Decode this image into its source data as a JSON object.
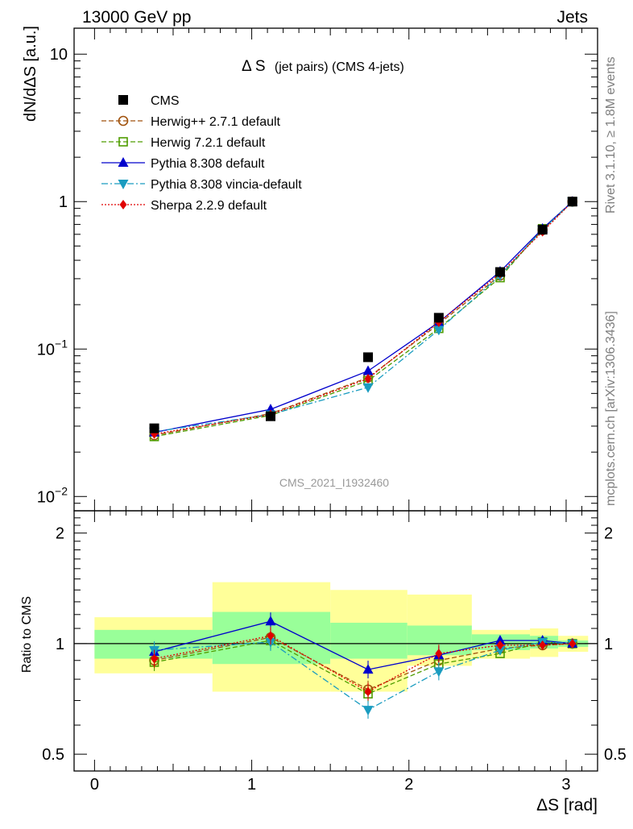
{
  "header": {
    "left": "13000 GeV pp",
    "right": "Jets"
  },
  "side_labels": {
    "top": "Rivet 3.1.10, ≥ 1.8M events",
    "bottom": "mcplots.cern.ch [arXiv:1306.3436]"
  },
  "watermark": "CMS_2021_I1932460",
  "colors": {
    "band_inner": "#99ff99",
    "band_outer": "#ffff99",
    "CMS": "#000000",
    "Herwig++ 2.7.1 default": "#a0520d",
    "Herwig 7.2.1 default": "#4f9d00",
    "Pythia 8.308 default": "#0000cc",
    "Pythia 8.308 vincia-default": "#1a9cc0",
    "Sherpa 2.2.9 default": "#e00000"
  },
  "chart_data": [
    {
      "type": "scatter",
      "panel": "main",
      "title_main": "Δ S",
      "title_sub": "(jet pairs) (CMS 4-jets)",
      "ylabel": "dN/dΔS [a.u.]",
      "yscale": "log",
      "ylim": [
        0.008,
        15
      ],
      "xlim": [
        -0.13,
        3.2
      ],
      "yticks": [
        {
          "v": 0.01,
          "base": "10",
          "exp": "−2"
        },
        {
          "v": 0.1,
          "base": "10",
          "exp": "−1"
        },
        {
          "v": 1,
          "base": "1",
          "exp": ""
        },
        {
          "v": 10,
          "base": "10",
          "exp": ""
        }
      ],
      "x": [
        0.38,
        1.12,
        1.74,
        2.19,
        2.58,
        2.85,
        3.04
      ],
      "series": [
        {
          "name": "CMS",
          "style": "data",
          "marker": "square",
          "values": [
            0.029,
            0.035,
            0.088,
            0.163,
            0.333,
            0.645,
            1.0
          ]
        },
        {
          "name": "Herwig++ 2.7.1 default",
          "style": "dashed",
          "marker": "circle-open",
          "values": [
            0.026,
            0.0365,
            0.064,
            0.148,
            0.315,
            0.64,
            1.0
          ]
        },
        {
          "name": "Herwig 7.2.1 default",
          "style": "dashed",
          "marker": "square-open",
          "values": [
            0.0255,
            0.0355,
            0.061,
            0.138,
            0.305,
            0.655,
            1.0
          ]
        },
        {
          "name": "Pythia 8.308 default",
          "style": "solid",
          "marker": "triangle-up",
          "values": [
            0.0272,
            0.039,
            0.071,
            0.152,
            0.335,
            0.655,
            1.0
          ]
        },
        {
          "name": "Pythia 8.308 vincia-default",
          "style": "dashdot",
          "marker": "triangle-down",
          "values": [
            0.0275,
            0.036,
            0.055,
            0.135,
            0.315,
            0.645,
            1.0
          ]
        },
        {
          "name": "Sherpa 2.2.9 default",
          "style": "dotted",
          "marker": "diamond",
          "values": [
            0.0265,
            0.036,
            0.063,
            0.152,
            0.325,
            0.625,
            1.0
          ]
        }
      ]
    },
    {
      "type": "scatter",
      "panel": "ratio",
      "ylabel": "Ratio to CMS",
      "xlabel": "ΔS [rad]",
      "yscale": "log",
      "ylim": [
        0.45,
        2.3
      ],
      "xlim": [
        -0.13,
        3.2
      ],
      "yticks": [
        {
          "v": 0.5,
          "label": "0.5"
        },
        {
          "v": 1,
          "label": "1"
        },
        {
          "v": 2,
          "label": "2"
        }
      ],
      "xticks": [
        {
          "v": 0,
          "label": "0"
        },
        {
          "v": 1,
          "label": "1"
        },
        {
          "v": 2,
          "label": "2"
        },
        {
          "v": 3,
          "label": "3"
        }
      ],
      "bins": [
        [
          0.0,
          0.75
        ],
        [
          0.75,
          1.5
        ],
        [
          1.5,
          1.99
        ],
        [
          1.99,
          2.4
        ],
        [
          2.4,
          2.77
        ],
        [
          2.77,
          2.95
        ],
        [
          2.95,
          3.14
        ]
      ],
      "band_inner": [
        [
          0.91,
          1.09
        ],
        [
          0.88,
          1.22
        ],
        [
          0.91,
          1.14
        ],
        [
          0.93,
          1.12
        ],
        [
          0.96,
          1.06
        ],
        [
          0.97,
          1.05
        ],
        [
          0.98,
          1.02
        ]
      ],
      "band_outer": [
        [
          0.83,
          1.18
        ],
        [
          0.74,
          1.47
        ],
        [
          0.74,
          1.4
        ],
        [
          0.87,
          1.36
        ],
        [
          0.91,
          1.09
        ],
        [
          0.92,
          1.1
        ],
        [
          0.95,
          1.05
        ]
      ],
      "x": [
        0.38,
        1.12,
        1.74,
        2.19,
        2.58,
        2.85,
        3.04
      ],
      "series": [
        {
          "name": "Herwig++ 2.7.1 default",
          "values": [
            0.9,
            1.04,
            0.75,
            0.9,
            0.97,
            0.99,
            1.0
          ]
        },
        {
          "name": "Herwig 7.2.1 default",
          "values": [
            0.89,
            1.02,
            0.73,
            0.88,
            0.94,
            1.01,
            1.0
          ]
        },
        {
          "name": "Pythia 8.308 default",
          "values": [
            0.95,
            1.15,
            0.85,
            0.93,
            1.02,
            1.02,
            1.0
          ]
        },
        {
          "name": "Pythia 8.308 vincia-default",
          "values": [
            0.96,
            1.01,
            0.66,
            0.84,
            0.96,
            1.01,
            1.0
          ]
        },
        {
          "name": "Sherpa 2.2.9 default",
          "values": [
            0.91,
            1.05,
            0.74,
            0.94,
            0.99,
            0.99,
            1.0
          ]
        }
      ]
    }
  ]
}
